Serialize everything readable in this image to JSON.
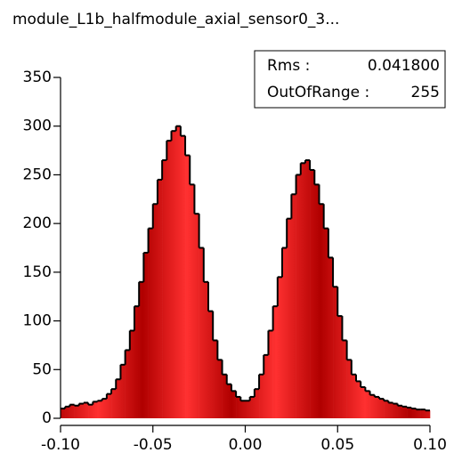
{
  "chart_data": {
    "type": "histogram",
    "title": "module_L1b_halfmodule_axial_sensor0_3...",
    "bins": [
      -0.1,
      -0.0975,
      -0.095,
      -0.0925,
      -0.09,
      -0.0875,
      -0.085,
      -0.0825,
      -0.08,
      -0.0775,
      -0.075,
      -0.0725,
      -0.07,
      -0.0675,
      -0.065,
      -0.0625,
      -0.06,
      -0.0575,
      -0.055,
      -0.0525,
      -0.05,
      -0.0475,
      -0.045,
      -0.0425,
      -0.04,
      -0.0375,
      -0.035,
      -0.0325,
      -0.03,
      -0.0275,
      -0.025,
      -0.0225,
      -0.02,
      -0.0175,
      -0.015,
      -0.0125,
      -0.01,
      -0.0075,
      -0.005,
      -0.0025,
      0,
      0.0025,
      0.005,
      0.0075,
      0.01,
      0.0125,
      0.015,
      0.0175,
      0.02,
      0.0225,
      0.025,
      0.0275,
      0.03,
      0.0325,
      0.035,
      0.0375,
      0.04,
      0.0425,
      0.045,
      0.0475,
      0.05,
      0.0525,
      0.055,
      0.0575,
      0.06,
      0.0625,
      0.065,
      0.0675,
      0.07,
      0.0725,
      0.075,
      0.0775,
      0.08,
      0.0825,
      0.085,
      0.0875,
      0.09,
      0.0925,
      0.095,
      0.0975,
      0.1
    ],
    "values": [
      10,
      12,
      14,
      13,
      15,
      16,
      14,
      17,
      18,
      20,
      25,
      30,
      40,
      55,
      70,
      90,
      115,
      140,
      170,
      195,
      220,
      245,
      265,
      285,
      295,
      300,
      290,
      270,
      240,
      210,
      175,
      140,
      110,
      80,
      60,
      45,
      35,
      28,
      22,
      18,
      18,
      22,
      30,
      45,
      65,
      90,
      115,
      145,
      175,
      205,
      230,
      250,
      262,
      265,
      255,
      240,
      220,
      195,
      165,
      135,
      105,
      80,
      60,
      45,
      38,
      32,
      28,
      24,
      22,
      20,
      18,
      16,
      15,
      13,
      12,
      11,
      10,
      9,
      9,
      8
    ],
    "color": "#ff1a1a",
    "xlim": [
      -0.1,
      0.1
    ],
    "xticks": [
      {
        "value": -0.1,
        "label": "-0.10"
      },
      {
        "value": -0.05,
        "label": "-0.05"
      },
      {
        "value": 0,
        "label": "0.00"
      },
      {
        "value": 0.05,
        "label": "0.05"
      },
      {
        "value": 0.1,
        "label": "0.10"
      }
    ],
    "ylim": [
      0,
      350
    ],
    "yticks": [
      0,
      50,
      100,
      150,
      200,
      250,
      300,
      350
    ],
    "stats": [
      {
        "label": "Rms :",
        "value": "0.041800"
      },
      {
        "label": "OutOfRange :",
        "value": "255"
      }
    ]
  }
}
